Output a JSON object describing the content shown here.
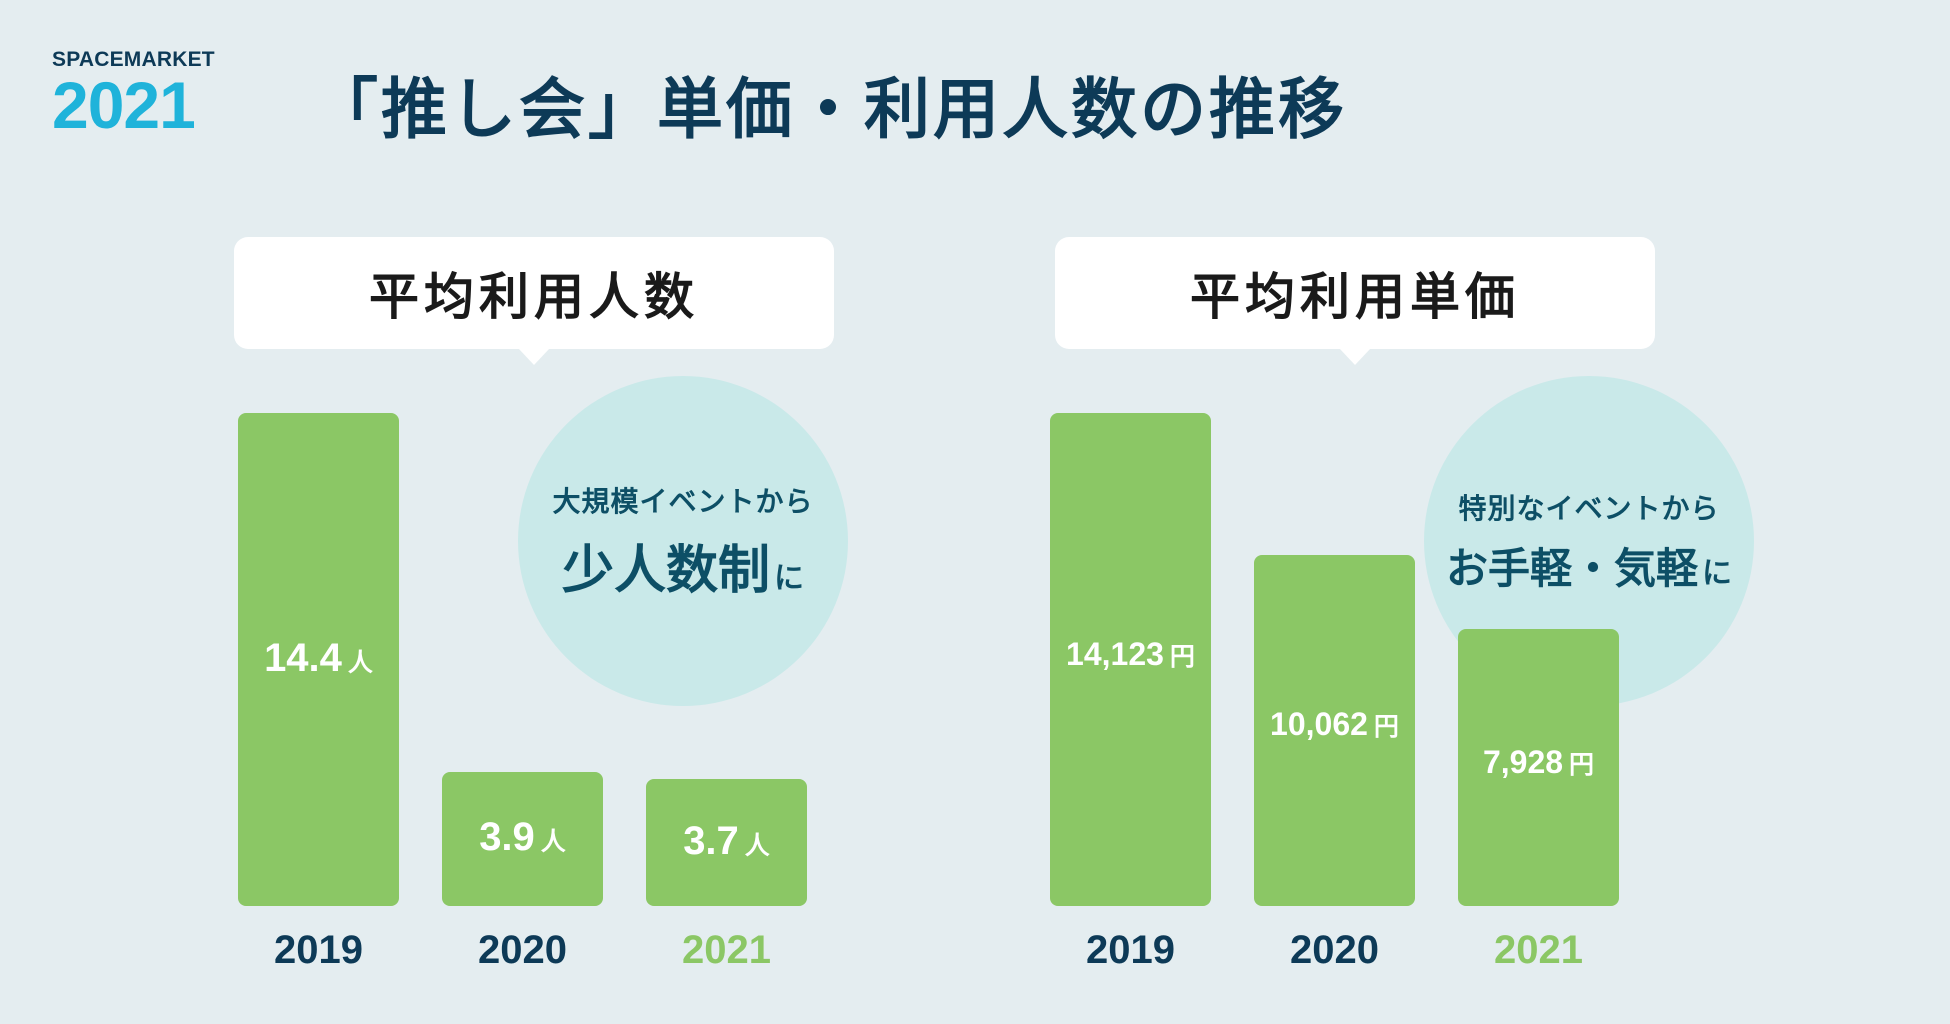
{
  "logo": {
    "word": "SPACEMARKET",
    "year": "2021"
  },
  "title": "「推し会」単価・利用人数の推移",
  "colors": {
    "bar": "#8bc765",
    "dark": "#0d3a57",
    "logo_year": "#1fb3da",
    "bubble": "#c9e9e9",
    "background": "#e4edf0"
  },
  "chart_data": [
    {
      "type": "bar",
      "title": "平均利用人数",
      "categories": [
        "2019",
        "2020",
        "2021"
      ],
      "values": [
        14.4,
        3.9,
        3.7
      ],
      "value_labels": [
        "14.4",
        "3.9",
        "3.7"
      ],
      "unit": "人",
      "callout": {
        "line1": "大規模イベントから",
        "big": "少人数制",
        "tail": "に"
      }
    },
    {
      "type": "bar",
      "title": "平均利用単価",
      "categories": [
        "2019",
        "2020",
        "2021"
      ],
      "values": [
        14123,
        10062,
        7928
      ],
      "value_labels": [
        "14,123",
        "10,062",
        "7,928"
      ],
      "unit": "円",
      "callout": {
        "line1": "特別なイベントから",
        "big": "お手軽・気軽",
        "tail": "に"
      }
    }
  ]
}
